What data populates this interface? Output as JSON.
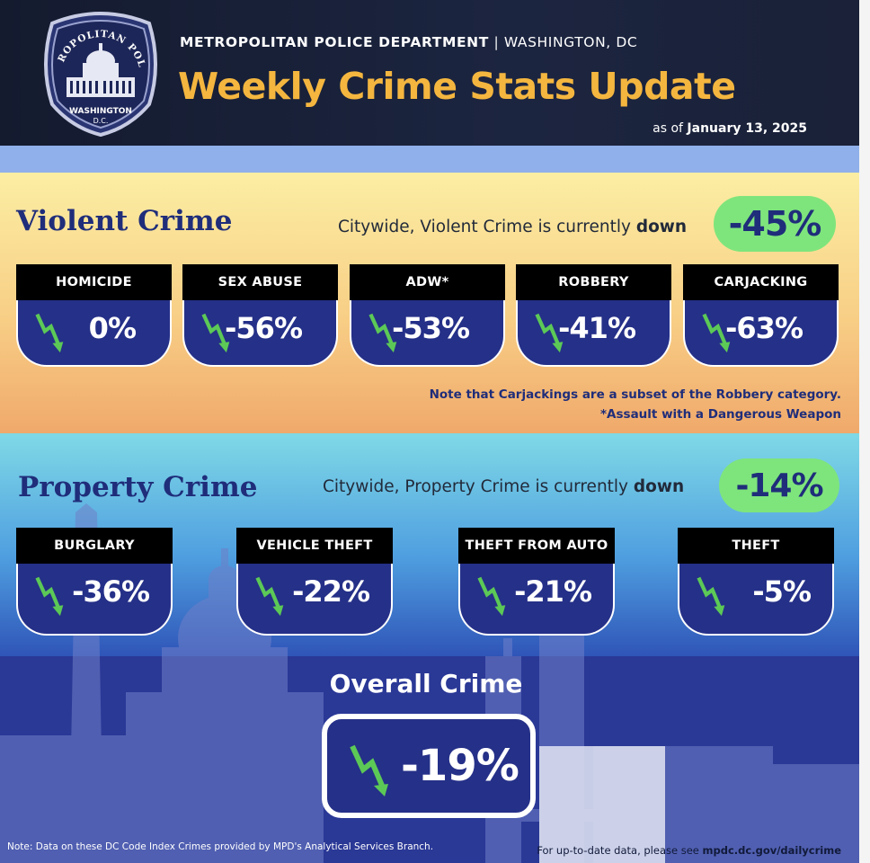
{
  "header": {
    "org_name": "METROPOLITAN POLICE DEPARTMENT",
    "separator": "|",
    "location": "WASHINGTON, DC",
    "title": "Weekly Crime Stats Update",
    "as_of_prefix": "as of",
    "as_of_date": "January 13, 2025",
    "badge": {
      "top_text": "METROPOLITAN POLICE",
      "city": "WASHINGTON",
      "state": "D.C."
    }
  },
  "violent": {
    "title": "Violent Crime",
    "summary_prefix": "Citywide, Violent Crime is currently",
    "summary_emphasis": "down",
    "change": "-45%",
    "categories": [
      {
        "label": "HOMICIDE",
        "value": "0%"
      },
      {
        "label": "SEX ABUSE",
        "value": "-56%"
      },
      {
        "label": "ADW*",
        "value": "-53%"
      },
      {
        "label": "ROBBERY",
        "value": "-41%"
      },
      {
        "label": "CARJACKING",
        "value": "-63%"
      }
    ],
    "note_1": "Note that Carjackings are a subset of the Robbery category.",
    "note_2": "*Assault with a Dangerous Weapon"
  },
  "property": {
    "title": "Property Crime",
    "summary_prefix": "Citywide, Property Crime is currently",
    "summary_emphasis": "down",
    "change": "-14%",
    "categories": [
      {
        "label": "BURGLARY",
        "value": "-36%"
      },
      {
        "label": "VEHICLE THEFT",
        "value": "-22%"
      },
      {
        "label": "THEFT FROM AUTO",
        "value": "-21%"
      },
      {
        "label": "THEFT",
        "value": "-5%"
      }
    ]
  },
  "overall": {
    "title": "Overall Crime",
    "value": "-19%"
  },
  "footer": {
    "left_note": "Note: Data on these DC Code Index Crimes provided by MPD's Analytical Services Branch.",
    "right_prefix": "For up-to-date data, please see",
    "right_link": "mpdc.dc.gov/dailycrime"
  },
  "colors": {
    "navy": "#1f2d7a",
    "card_blue": "#253088",
    "gold": "#f4b63f",
    "green": "#7ee57c",
    "arrow_green": "#5cc956"
  },
  "icons": {
    "trend": "zigzag-down-arrow-icon",
    "badge": "police-badge-capitol-icon"
  }
}
